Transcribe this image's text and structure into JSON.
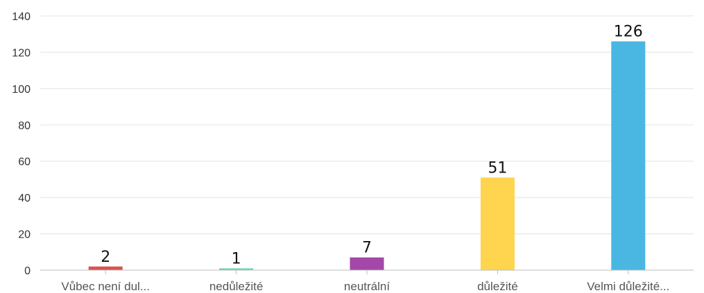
{
  "chart_data": {
    "type": "bar",
    "categories": [
      "Vůbec není dul...",
      "nedůležité",
      "neutrální",
      "důležité",
      "Velmi důležité..."
    ],
    "values": [
      2,
      1,
      7,
      51,
      126
    ],
    "colors": [
      "#d9534f",
      "#6dd3b6",
      "#a347a8",
      "#ffd54f",
      "#4ab7e2"
    ],
    "ylim": [
      0,
      140
    ],
    "yticks": [
      0,
      20,
      40,
      60,
      80,
      100,
      120,
      140
    ],
    "grid": true,
    "legend": "none",
    "title": "",
    "xlabel": "",
    "ylabel": ""
  }
}
